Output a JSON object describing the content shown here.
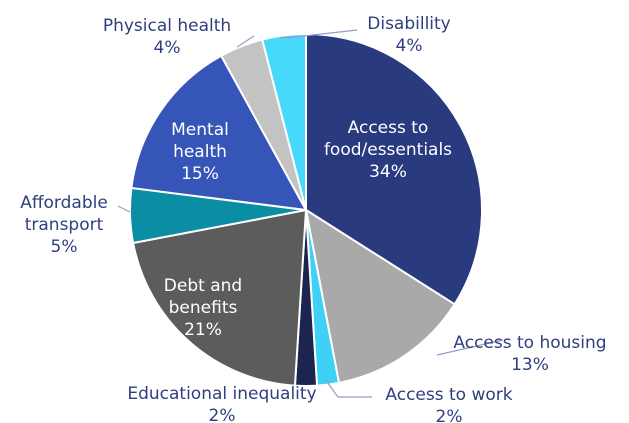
{
  "chart_data": {
    "type": "pie",
    "title": "",
    "slices": [
      {
        "name": "Access to food/essentials",
        "label_lines": [
          "Access to",
          "food/essentials"
        ],
        "value": 34,
        "value_label": "34%",
        "color": "#293a7e",
        "label_color": "#ffffff"
      },
      {
        "name": "Access to housing",
        "label_lines": [
          "Access to housing"
        ],
        "value": 13,
        "value_label": "13%",
        "color": "#a9a9a9",
        "label_color": "#2e3f7f"
      },
      {
        "name": "Access to work",
        "label_lines": [
          "Access to work"
        ],
        "value": 2,
        "value_label": "2%",
        "color": "#3fd0f5",
        "label_color": "#2e3f7f"
      },
      {
        "name": "Educational inequality",
        "label_lines": [
          "Educational inequality"
        ],
        "value": 2,
        "value_label": "2%",
        "color": "#1b2550",
        "label_color": "#2e3f7f"
      },
      {
        "name": "Debt and benefits",
        "label_lines": [
          "Debt and",
          "benefits"
        ],
        "value": 21,
        "value_label": "21%",
        "color": "#5c5c5c",
        "label_color": "#ffffff"
      },
      {
        "name": "Affordable transport",
        "label_lines": [
          "Affordable",
          "transport"
        ],
        "value": 5,
        "value_label": "5%",
        "color": "#0b8ea4",
        "label_color": "#2e3f7f"
      },
      {
        "name": "Mental health",
        "label_lines": [
          "Mental",
          "health"
        ],
        "value": 15,
        "value_label": "15%",
        "color": "#3555b8",
        "label_color": "#ffffff"
      },
      {
        "name": "Physical health",
        "label_lines": [
          "Physical health"
        ],
        "value": 4,
        "value_label": "4%",
        "color": "#c3c3c3",
        "label_color": "#2e3f7f"
      },
      {
        "name": "Disabillity",
        "label_lines": [
          "Disabillity"
        ],
        "value": 4,
        "value_label": "4%",
        "color": "#47d9fa",
        "label_color": "#2e3f7f"
      }
    ]
  }
}
